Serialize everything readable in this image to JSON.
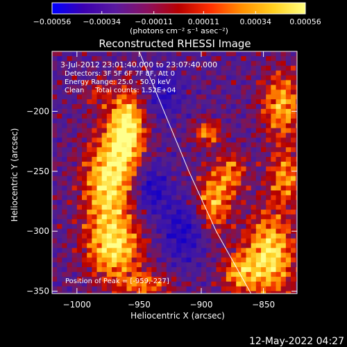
{
  "chart_data": {
    "type": "heatmap",
    "title": "Reconstructed RHESSI Image",
    "xlabel": "Heliocentric X (arcsec)",
    "ylabel": "Heliocentric Y (arcsec)",
    "x_range": [
      -1020,
      -823
    ],
    "y_range": [
      -352,
      -150
    ],
    "x_ticks": [
      -1000,
      -950,
      -900,
      -850
    ],
    "y_ticks": [
      -200,
      -250,
      -300,
      -350
    ],
    "x_tick_labels": [
      "−1000",
      "−950",
      "−900",
      "−850"
    ],
    "y_tick_labels": [
      "−200",
      "−250",
      "−300",
      "−350"
    ],
    "colorbar": {
      "range": [
        -0.00056,
        0.00056
      ],
      "ticks": [
        -0.00056,
        -0.00034,
        -0.00011,
        0.00011,
        0.00034,
        0.00056
      ],
      "tick_labels": [
        "−0.00056",
        "−0.00034",
        "−0.00011",
        "0.00011",
        "0.00034",
        "0.00056"
      ],
      "unit_label": "(photons cm⁻² s⁻¹ asec⁻²)",
      "colors": [
        "#0000ff",
        "#3b00b0",
        "#5a1aa0",
        "#8a1060",
        "#b80000",
        "#ff3000",
        "#ff9000",
        "#ffd020",
        "#ffff80"
      ]
    },
    "annotations": [
      "3-Jul-2012 23:01:40.000 to 23:07:40.000",
      "Detectors: 3F 5F 6F 7F 8F, Att 0",
      "Energy Range: 25.0 - 50.0 keV",
      "Clean     Total counts: 1.52E+04"
    ],
    "peak_label": "Position of Peak = [-959,-227]",
    "peak": [
      -959,
      -227
    ],
    "limb": [
      [
        -950,
        -150
      ],
      [
        -930,
        -200
      ],
      [
        -910,
        -250
      ],
      [
        -888,
        -300
      ],
      [
        -860,
        -352
      ]
    ],
    "regions": [
      {
        "x": -960,
        "y": -215,
        "sx": 10,
        "sy": 22,
        "amp": 1.0
      },
      {
        "x": -975,
        "y": -260,
        "sx": 14,
        "sy": 28,
        "amp": 0.9
      },
      {
        "x": -970,
        "y": -315,
        "sx": 16,
        "sy": 18,
        "amp": 0.8
      },
      {
        "x": -945,
        "y": -345,
        "sx": 16,
        "sy": 8,
        "amp": 0.5
      },
      {
        "x": -985,
        "y": -185,
        "sx": 8,
        "sy": 8,
        "amp": 0.3
      },
      {
        "x": -895,
        "y": -218,
        "sx": 8,
        "sy": 7,
        "amp": 0.6
      },
      {
        "x": -890,
        "y": -275,
        "sx": 10,
        "sy": 18,
        "amp": 0.7
      },
      {
        "x": -875,
        "y": -250,
        "sx": 8,
        "sy": 12,
        "amp": 0.5
      },
      {
        "x": -835,
        "y": -195,
        "sx": 12,
        "sy": 20,
        "amp": 0.7
      },
      {
        "x": -832,
        "y": -255,
        "sx": 10,
        "sy": 16,
        "amp": 0.6
      },
      {
        "x": -845,
        "y": -320,
        "sx": 14,
        "sy": 25,
        "amp": 0.9
      },
      {
        "x": -870,
        "y": -335,
        "sx": 10,
        "sy": 12,
        "amp": 0.6
      },
      {
        "x": -940,
        "y": -265,
        "sx": 10,
        "sy": 14,
        "amp": -0.5
      },
      {
        "x": -915,
        "y": -300,
        "sx": 12,
        "sy": 18,
        "amp": -0.5
      },
      {
        "x": -930,
        "y": -185,
        "sx": 10,
        "sy": 14,
        "amp": -0.4
      }
    ]
  },
  "timestamp": "12-May-2022 04:27"
}
